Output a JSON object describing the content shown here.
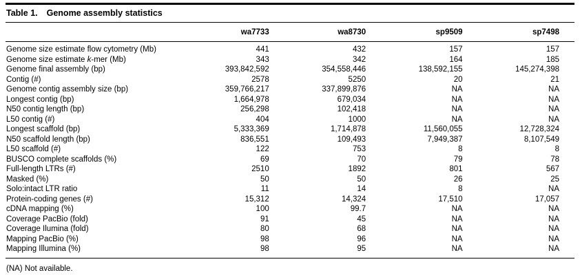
{
  "colors": {
    "text": "#000000",
    "background": "#ffffff",
    "rule": "#000000"
  },
  "table": {
    "title_label": "Table 1.",
    "title_text": "Genome assembly statistics",
    "columns": [
      "wa7733",
      "wa8730",
      "sp9509",
      "sp7498"
    ],
    "rows": [
      {
        "label": "Genome size estimate flow cytometry (Mb)",
        "values": [
          "441",
          "432",
          "157",
          "157"
        ]
      },
      {
        "label": "Genome size estimate *k*-mer (Mb)",
        "values": [
          "343",
          "342",
          "164",
          "185"
        ]
      },
      {
        "label": "Genome final assembly (bp)",
        "values": [
          "393,842,592",
          "354,558,446",
          "138,592,155",
          "145,274,398"
        ]
      },
      {
        "label": "Contig (#)",
        "values": [
          "2578",
          "5250",
          "20",
          "21"
        ]
      },
      {
        "label": "Genome contig assembly size (bp)",
        "values": [
          "359,766,217",
          "337,899,876",
          "NA",
          "NA"
        ]
      },
      {
        "label": "Longest contig (bp)",
        "values": [
          "1,664,978",
          "679,034",
          "NA",
          "NA"
        ]
      },
      {
        "label": "N50 contig length (bp)",
        "values": [
          "256,298",
          "102,418",
          "NA",
          "NA"
        ]
      },
      {
        "label": "L50 contig (#)",
        "values": [
          "404",
          "1000",
          "NA",
          "NA"
        ]
      },
      {
        "label": "Longest scaffold (bp)",
        "values": [
          "5,333,369",
          "1,714,878",
          "11,560,055",
          "12,728,324"
        ]
      },
      {
        "label": "N50 scaffold length (bp)",
        "values": [
          "836,551",
          "109,493",
          "7,949,387",
          "8,107,549"
        ]
      },
      {
        "label": "L50 scaffold (#)",
        "values": [
          "122",
          "753",
          "8",
          "8"
        ]
      },
      {
        "label": "BUSCO complete scaffolds (%)",
        "values": [
          "69",
          "70",
          "79",
          "78"
        ]
      },
      {
        "label": "Full-length LTRs (#)",
        "values": [
          "2510",
          "1892",
          "801",
          "567"
        ]
      },
      {
        "label": "Masked (%)",
        "values": [
          "50",
          "50",
          "26",
          "25"
        ]
      },
      {
        "label": "Solo:intact LTR ratio",
        "values": [
          "11",
          "14",
          "8",
          "NA"
        ]
      },
      {
        "label": "Protein-coding genes (#)",
        "values": [
          "15,312",
          "14,324",
          "17,510",
          "17,057"
        ]
      },
      {
        "label": "cDNA mapping (%)",
        "values": [
          "100",
          "99.7",
          "NA",
          "NA"
        ]
      },
      {
        "label": "Coverage PacBio (fold)",
        "values": [
          "91",
          "45",
          "NA",
          "NA"
        ]
      },
      {
        "label": "Coverage Ilumina (fold)",
        "values": [
          "80",
          "68",
          "NA",
          "NA"
        ]
      },
      {
        "label": "Mapping PacBio (%)",
        "values": [
          "98",
          "96",
          "NA",
          "NA"
        ]
      },
      {
        "label": "Mapping Illumina (%)",
        "values": [
          "98",
          "95",
          "NA",
          "NA"
        ]
      }
    ],
    "footnote": "(NA) Not available."
  }
}
